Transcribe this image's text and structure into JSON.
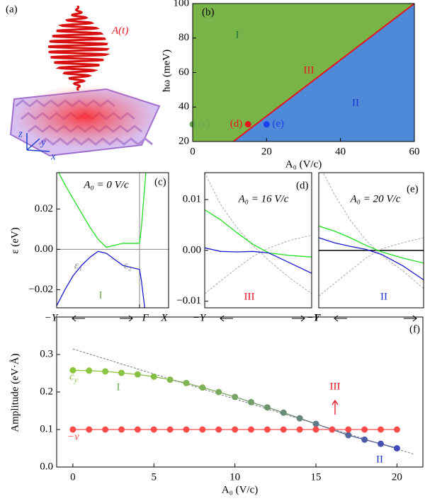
{
  "illustration": {
    "label": "(a)",
    "field": "A(t)",
    "axes": [
      "z",
      "y",
      "x"
    ]
  },
  "chart_data": [
    {
      "type": "phase",
      "label": "(b)",
      "xlabel": "A₀ (V/c)",
      "ylabel": "ħω (meV)",
      "xlim": [
        0,
        60
      ],
      "ylim": [
        20,
        100
      ],
      "xticks": [
        0,
        20,
        40,
        60
      ],
      "yticks": [
        20,
        40,
        60,
        80,
        100
      ],
      "regions": [
        {
          "name": "I",
          "color": "#78b447",
          "label_color": "#1e6b2e"
        },
        {
          "name": "II",
          "color": "#4f8ad8",
          "label_color": "#1a33cc"
        },
        {
          "name": "III",
          "color": "#e8141c"
        }
      ],
      "boundary": {
        "x": [
          11,
          60
        ],
        "y": [
          20,
          100
        ]
      },
      "points": [
        {
          "label": "(c)",
          "x": 0,
          "y": 30,
          "color": "#6aa84f"
        },
        {
          "label": "(d)",
          "x": 15,
          "y": 30,
          "color": "#e8141c"
        },
        {
          "label": "(e)",
          "x": 20,
          "y": 30,
          "color": "#1a3ff0"
        }
      ]
    },
    {
      "type": "line",
      "label": "(c)",
      "ylabel": "ε (eV)",
      "params": "A₀ = 0 V/c",
      "region": "I",
      "region_color": "#6aa84f",
      "bands": [
        "ε₁",
        "ε₂"
      ],
      "xlim": [
        0,
        1.35
      ],
      "ylim": [
        -0.029,
        0.038
      ],
      "xticks": [
        {
          "value": 0,
          "label": "−Y"
        },
        {
          "value": 1,
          "label": "Γ"
        },
        {
          "value": 1.35,
          "label": "X"
        }
      ],
      "yticks": [
        {
          "value": 0.02,
          "label": "0.02"
        },
        {
          "value": 0,
          "label": "0.00"
        },
        {
          "value": -0.02,
          "label": "−0.02"
        }
      ],
      "hline_color": "#888",
      "vlines": [
        1
      ],
      "x": [
        0,
        0.1,
        0.2,
        0.3,
        0.4,
        0.5,
        0.6,
        0.7,
        0.8,
        0.9,
        1.0,
        1.02,
        1.05,
        1.08
      ],
      "series": [
        {
          "color": "#22e022",
          "values": [
            0.04,
            0.032,
            0.025,
            0.018,
            0.011,
            0.005,
            0.001,
            0.002,
            0.003,
            0.003,
            0.003,
            0.01,
            0.025,
            0.04
          ]
        },
        {
          "color": "#1a1ad0",
          "values": [
            -0.028,
            -0.02,
            -0.013,
            -0.008,
            -0.004,
            -0.001,
            -0.002,
            -0.005,
            -0.008,
            -0.009,
            -0.01,
            -0.015,
            -0.025,
            -0.035
          ]
        }
      ]
    },
    {
      "type": "line",
      "label": "(d)",
      "params": "A₀ = 16 V/c",
      "region": "III",
      "region_color": "#e8141c",
      "xlim": [
        0,
        1
      ],
      "ylim": [
        -0.0113,
        0.0153
      ],
      "xticks": [
        {
          "value": 0,
          "label": "−Y"
        },
        {
          "value": 1,
          "label": "Γ"
        }
      ],
      "yticks": [
        {
          "value": 0.01,
          "label": "0.01"
        },
        {
          "value": 0,
          "label": "0.00"
        },
        {
          "value": -0.01,
          "label": "−0.01"
        }
      ],
      "x": [
        0,
        0.15,
        0.3,
        0.45,
        0.6,
        0.8,
        1
      ],
      "series": [
        {
          "color": "#aaa",
          "dash": true,
          "values": [
            0.0153,
            0.009,
            0.0045,
            0.001,
            -0.002,
            -0.0055,
            -0.0085
          ]
        },
        {
          "color": "#aaa",
          "dash": true,
          "values": [
            -0.0085,
            -0.006,
            -0.0035,
            -0.0012,
            0.0005,
            0.002,
            0.003
          ]
        },
        {
          "color": "#22e022",
          "values": [
            0.008,
            0.006,
            0.0035,
            0.0012,
            -0.0005,
            -0.001,
            -0.0013
          ]
        },
        {
          "color": "#1a1ad0",
          "values": [
            0.0005,
            -0.0002,
            -0.0003,
            -0.0002,
            -0.0005,
            -0.0025,
            -0.0045
          ]
        }
      ]
    },
    {
      "type": "line",
      "label": "(e)",
      "params": "A₀ = 20 V/c",
      "region": "II",
      "region_color": "#1a33cc",
      "xlim": [
        0,
        1
      ],
      "ylim": [
        -0.0113,
        0.0153
      ],
      "hline_color": "#000",
      "xticks": [
        {
          "value": 0,
          "label": "−Y"
        },
        {
          "value": 1,
          "label": "Γ"
        }
      ],
      "x": [
        0,
        0.15,
        0.3,
        0.45,
        0.6,
        0.8,
        1
      ],
      "series": [
        {
          "color": "#aaa",
          "dash": true,
          "values": [
            0.017,
            0.011,
            0.006,
            0.002,
            -0.001,
            -0.004,
            -0.0075
          ]
        },
        {
          "color": "#aaa",
          "dash": true,
          "values": [
            -0.009,
            -0.0065,
            -0.004,
            -0.0015,
            0.0003,
            0.0015,
            0.0025
          ]
        },
        {
          "color": "#22e022",
          "values": [
            0.0048,
            0.0038,
            0.0025,
            0.001,
            -0.0003,
            -0.0015,
            -0.0025
          ]
        },
        {
          "color": "#1a1ad0",
          "values": [
            0.0025,
            0.0015,
            0.0008,
            0.0002,
            -0.0008,
            -0.003,
            -0.0058
          ]
        }
      ]
    },
    {
      "type": "markers",
      "label": "(f)",
      "xlabel": "A₀ (V/c)",
      "ylabel": "Amplitude (eV·Å)",
      "regions": [
        "I",
        "III",
        "II"
      ],
      "region_colors": [
        "#6aa84f",
        "#e8141c",
        "#1a33cc"
      ],
      "xlim": [
        -1,
        21.6
      ],
      "ylim": [
        0,
        0.4
      ],
      "xticks": [
        0,
        5,
        10,
        15,
        20
      ],
      "yticks": [
        {
          "value": 0,
          "label": "0.0"
        },
        0.1,
        0.2,
        0.3
      ],
      "x": [
        0,
        1,
        2,
        3,
        4,
        5,
        6,
        7,
        8,
        9,
        10,
        11,
        12,
        13,
        14,
        15,
        16,
        17,
        18,
        19,
        20
      ],
      "series": [
        {
          "name": "c_y",
          "color": "#6aa84f",
          "point_colors": [
            "#8cc63f",
            "#8cc63f",
            "#8bc440",
            "#8ac243",
            "#88c046",
            "#86bd49",
            "#84b94d",
            "#82b552",
            "#7eb057",
            "#7aaa5d",
            "#76a463",
            "#729d69",
            "#6d956f",
            "#698d76",
            "#64847d",
            "#5f7a86",
            "#59708f",
            "#53669a",
            "#4d5ca5",
            "#4752b0",
            "#4149bb"
          ],
          "values": [
            0.258,
            0.257,
            0.255,
            0.251,
            0.247,
            0.241,
            0.233,
            0.224,
            0.212,
            0.2,
            0.187,
            0.173,
            0.159,
            0.145,
            0.13,
            0.115,
            0.1,
            0.085,
            0.073,
            0.062,
            0.05
          ]
        },
        {
          "name": "−v",
          "color": "#ff4a4a",
          "values": [
            0.1,
            0.1,
            0.1,
            0.1,
            0.1,
            0.1,
            0.1,
            0.1,
            0.1,
            0.1,
            0.1,
            0.1,
            0.1,
            0.1,
            0.1,
            0.1,
            0.1,
            0.1,
            0.1,
            0.1,
            0.1
          ]
        },
        {
          "color": "#777",
          "dash": true,
          "x": [
            0,
            21
          ],
          "values": [
            0.315,
            0.035
          ]
        }
      ]
    }
  ]
}
